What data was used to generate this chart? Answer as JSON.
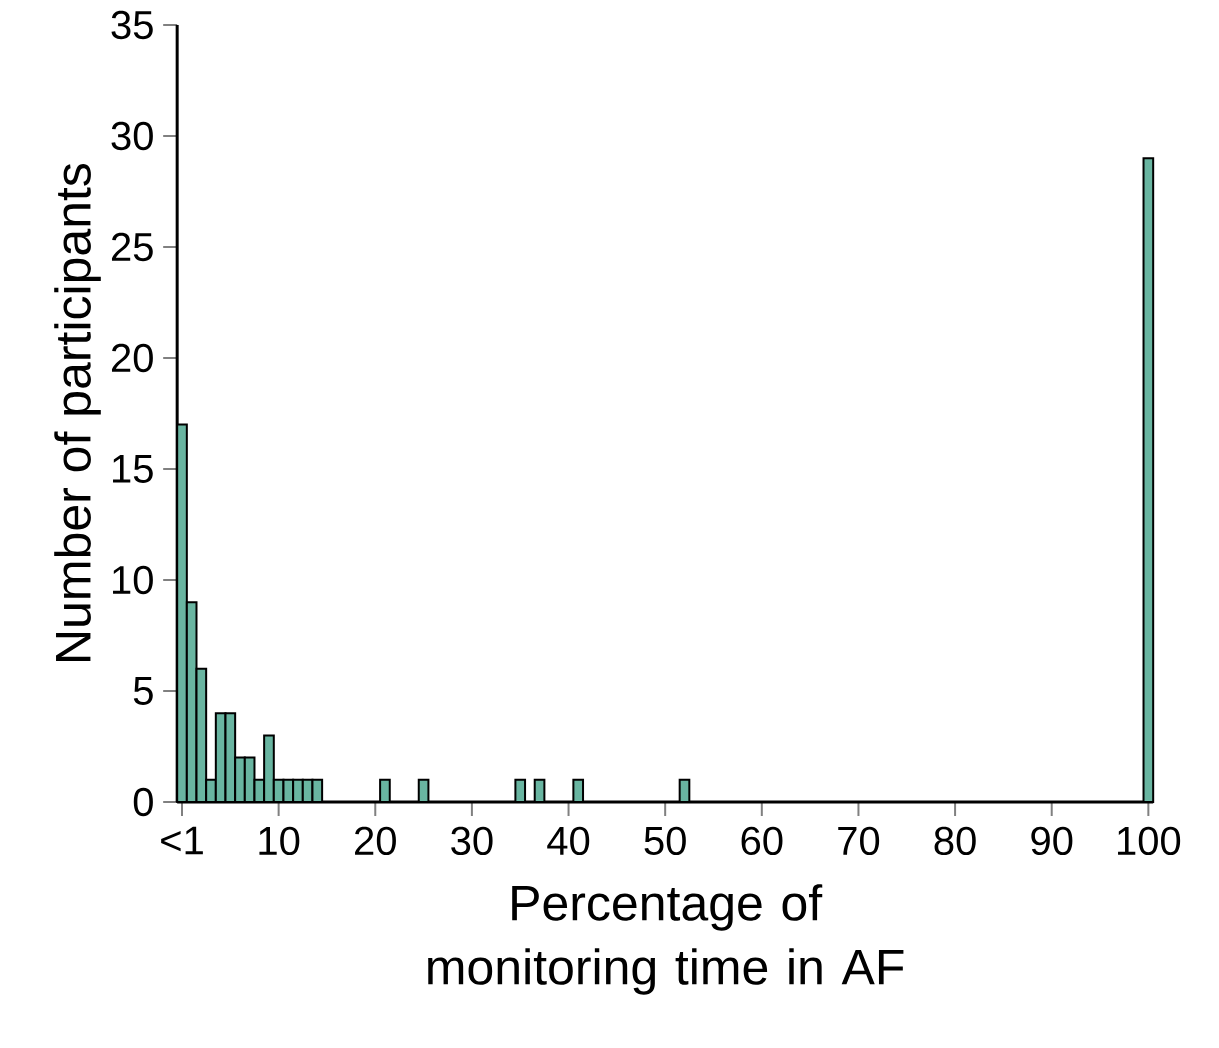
{
  "chart_data": {
    "type": "histogram",
    "xlabel": "Percentage of monitoring time in AF",
    "ylabel": "Number of participants",
    "bins": [
      -0.5,
      0.5,
      1.5,
      2.5,
      3.5,
      4.5,
      5.5,
      6.5,
      7.5,
      8.5,
      9.5,
      10.5,
      11.5,
      12.5,
      13.5,
      14.5,
      20.5,
      21.5,
      24.5,
      25.5,
      34.5,
      35.5,
      36.5,
      37.5,
      40.5,
      41.5,
      51.5,
      52.5,
      99.5,
      100.5
    ],
    "values": [
      17,
      9,
      6,
      1,
      4,
      4,
      2,
      2,
      1,
      3,
      1,
      1,
      1,
      1,
      1,
      0,
      1,
      0,
      1,
      0,
      1,
      0,
      1,
      0,
      1,
      0,
      1,
      0,
      29
    ],
    "color": "#69b5a1",
    "xlim": [
      -0.5,
      100.5
    ],
    "ylim": [
      0,
      35
    ],
    "xticks": [
      {
        "value": 0,
        "label": "<1"
      },
      10,
      20,
      30,
      40,
      50,
      60,
      70,
      80,
      90,
      100
    ],
    "yticks": [
      0,
      5,
      10,
      15,
      20,
      25,
      30,
      35
    ]
  }
}
